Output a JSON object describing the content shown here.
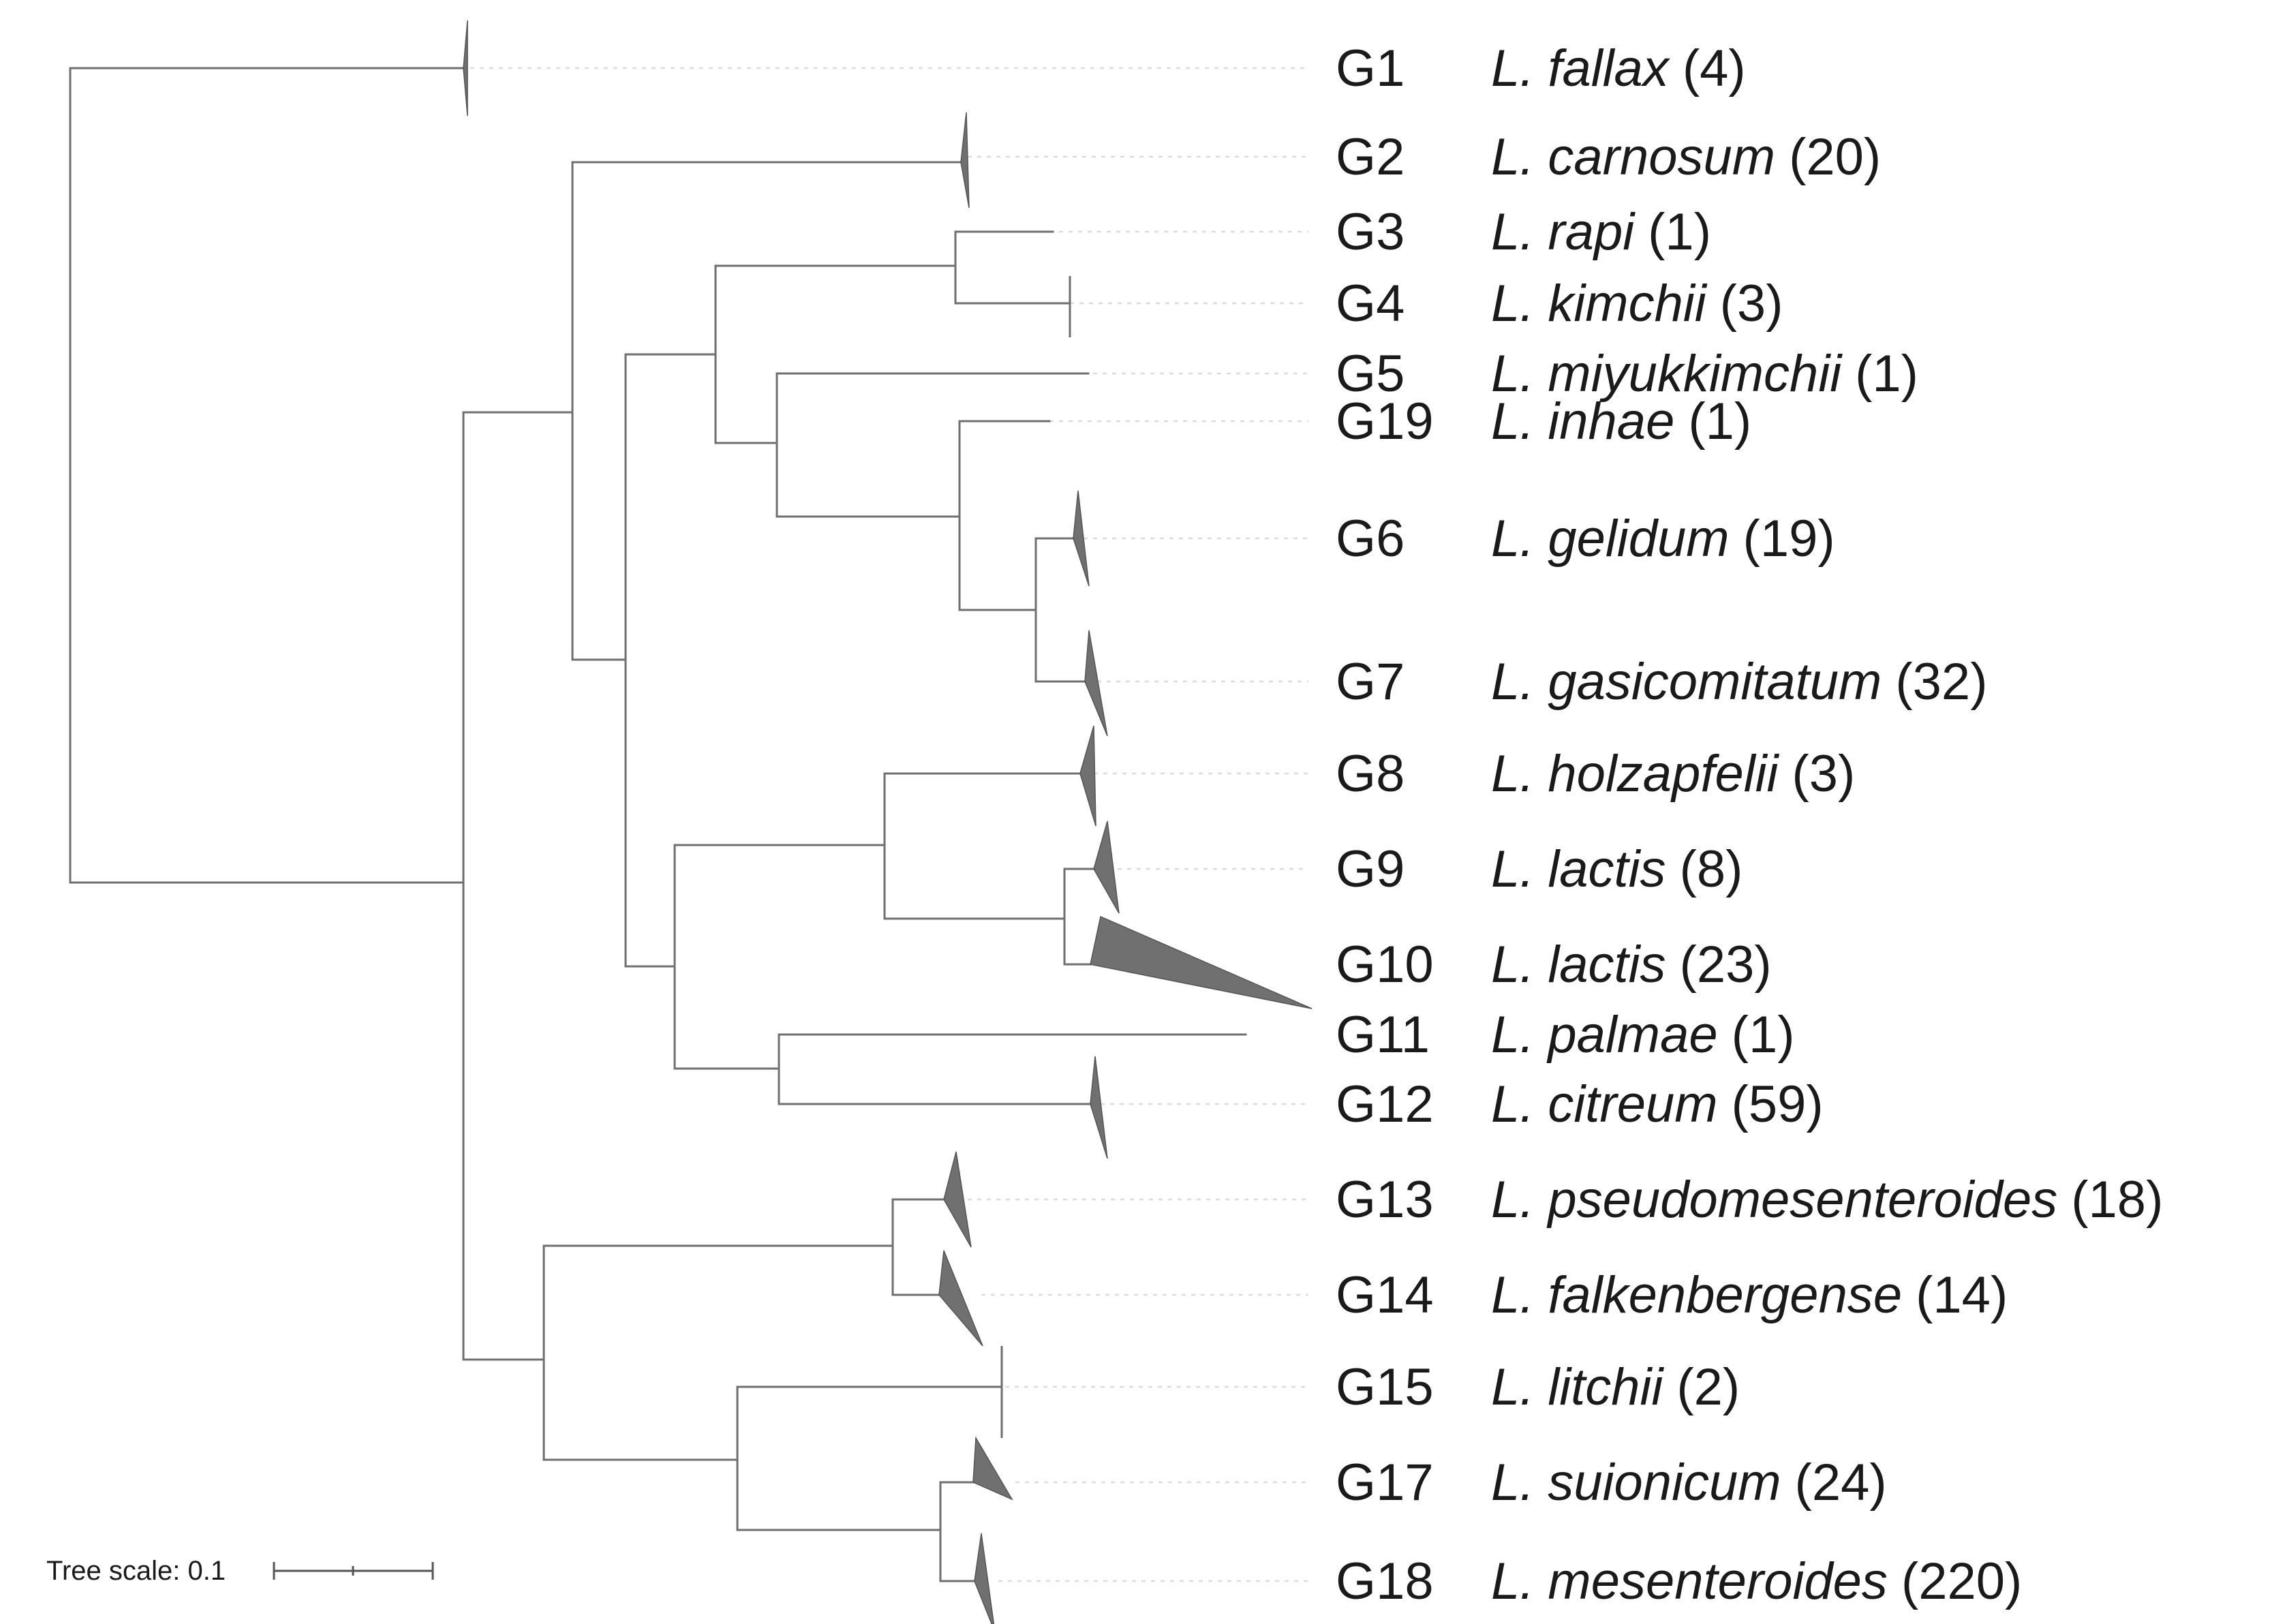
{
  "figure": {
    "type": "phylogenetic-tree",
    "scale_label": "Tree scale: 0.1"
  },
  "leaves": [
    {
      "id": "G1",
      "group": "G1",
      "genus": "L.",
      "species": "fallax",
      "count": "(4)"
    },
    {
      "id": "G2",
      "group": "G2",
      "genus": "L.",
      "species": "carnosum",
      "count": "(20)"
    },
    {
      "id": "G3",
      "group": "G3",
      "genus": "L.",
      "species": "rapi",
      "count": "(1)"
    },
    {
      "id": "G4",
      "group": "G4",
      "genus": "L.",
      "species": "kimchii",
      "count": "(3)"
    },
    {
      "id": "G5",
      "group": "G5",
      "genus": "L.",
      "species": "miyukkimchii",
      "count": "(1)"
    },
    {
      "id": "G19",
      "group": "G19",
      "genus": "L.",
      "species": "inhae",
      "count": "(1)"
    },
    {
      "id": "G6",
      "group": "G6",
      "genus": "L.",
      "species": "gelidum",
      "count": "(19)"
    },
    {
      "id": "G7",
      "group": "G7",
      "genus": "L.",
      "species": "gasicomitatum",
      "count": "(32)"
    },
    {
      "id": "G8",
      "group": "G8",
      "genus": "L.",
      "species": "holzapfelii",
      "count": "(3)"
    },
    {
      "id": "G9",
      "group": "G9",
      "genus": "L.",
      "species": "lactis",
      "count": "(8)"
    },
    {
      "id": "G10",
      "group": "G10",
      "genus": "L.",
      "species": "lactis",
      "count": "(23)"
    },
    {
      "id": "G11",
      "group": "G11",
      "genus": "L.",
      "species": "palmae",
      "count": "(1)"
    },
    {
      "id": "G12",
      "group": "G12",
      "genus": "L.",
      "species": "citreum",
      "count": "(59)"
    },
    {
      "id": "G13",
      "group": "G13",
      "genus": "L.",
      "species": "pseudomesenteroides",
      "count": "(18)"
    },
    {
      "id": "G14",
      "group": "G14",
      "genus": "L.",
      "species": "falkenbergense",
      "count": "(14)"
    },
    {
      "id": "G15",
      "group": "G15",
      "genus": "L.",
      "species": "litchii",
      "count": "(2)"
    },
    {
      "id": "G17",
      "group": "G17",
      "genus": "L.",
      "species": "suionicum",
      "count": "(24)"
    },
    {
      "id": "G18",
      "group": "G18",
      "genus": "L.",
      "species": "mesenteroides",
      "count": "(220)"
    }
  ]
}
